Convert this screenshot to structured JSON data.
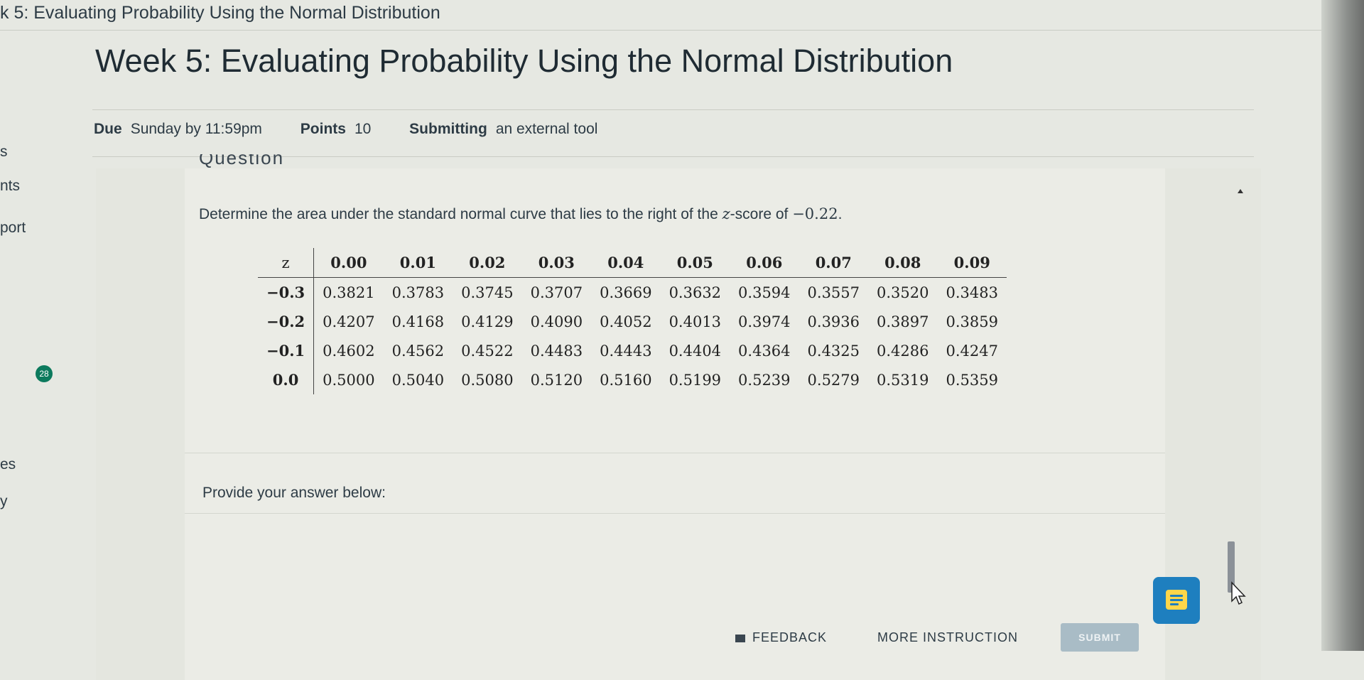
{
  "breadcrumb": {
    "title": "k 5: Evaluating Probability Using the Normal Distribution"
  },
  "left_nav": {
    "items": [
      "s",
      "nts",
      "port",
      "es",
      "y"
    ],
    "badge": "28"
  },
  "assignment": {
    "title": "Week 5: Evaluating Probability Using the Normal Distribution",
    "due_label": "Due",
    "due_value": "Sunday by 11:59pm",
    "points_label": "Points",
    "points_value": "10",
    "submitting_label": "Submitting",
    "submitting_value": "an external tool"
  },
  "question": {
    "heading": "Question",
    "text_before": "Determine the area under the standard normal curve that lies to the right of the ",
    "z_symbol": "z",
    "text_mid": "-score of ",
    "z_value": "−0.22",
    "text_after": ".",
    "table": {
      "corner": "z",
      "columns": [
        "0.00",
        "0.01",
        "0.02",
        "0.03",
        "0.04",
        "0.05",
        "0.06",
        "0.07",
        "0.08",
        "0.09"
      ],
      "rows": [
        {
          "z": "−0.3",
          "values": [
            "0.3821",
            "0.3783",
            "0.3745",
            "0.3707",
            "0.3669",
            "0.3632",
            "0.3594",
            "0.3557",
            "0.3520",
            "0.3483"
          ]
        },
        {
          "z": "−0.2",
          "values": [
            "0.4207",
            "0.4168",
            "0.4129",
            "0.4090",
            "0.4052",
            "0.4013",
            "0.3974",
            "0.3936",
            "0.3897",
            "0.3859"
          ]
        },
        {
          "z": "−0.1",
          "values": [
            "0.4602",
            "0.4562",
            "0.4522",
            "0.4483",
            "0.4443",
            "0.4404",
            "0.4364",
            "0.4325",
            "0.4286",
            "0.4247"
          ]
        },
        {
          "z": "0.0",
          "values": [
            "0.5000",
            "0.5040",
            "0.5080",
            "0.5120",
            "0.5160",
            "0.5199",
            "0.5239",
            "0.5279",
            "0.5319",
            "0.5359"
          ]
        }
      ]
    },
    "answer_prompt": "Provide your answer below:"
  },
  "footer": {
    "feedback_label": "FEEDBACK",
    "more_instruction_label": "MORE INSTRUCTION",
    "submit_label": "SUBMIT"
  },
  "icons": {
    "chat": "chat-icon",
    "feedback": "feedback-icon",
    "cursor": "cursor-arrow-icon"
  },
  "colors": {
    "chat_button": "#1e7fbf",
    "chat_icon": "#ffd64a",
    "badge": "#0c7a5d",
    "submit_disabled": "#a9bcc6"
  }
}
